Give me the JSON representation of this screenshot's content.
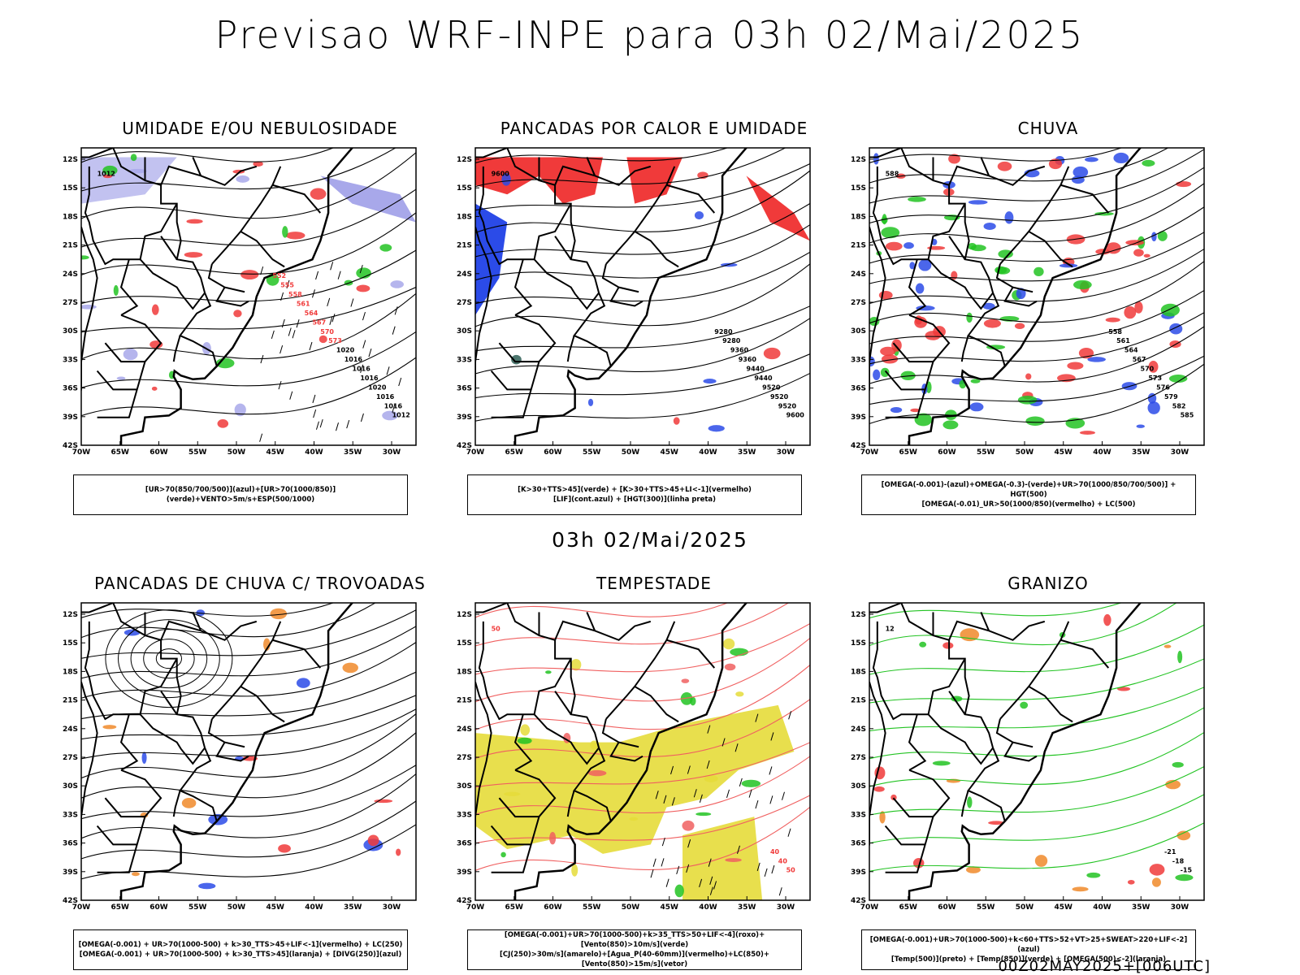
{
  "header": {
    "title": "Previsao WRF-INPE  para 03h 02/Mai/2025",
    "subtitle": "03h 02/Mai/2025",
    "footer": "00Z02MAY2025+[006UTC]"
  },
  "axes": {
    "y_labels": [
      "12S",
      "15S",
      "18S",
      "21S",
      "24S",
      "27S",
      "30S",
      "33S",
      "36S",
      "39S",
      "42S"
    ],
    "x_labels": [
      "70W",
      "65W",
      "60W",
      "55W",
      "50W",
      "45W",
      "40W",
      "35W",
      "30W"
    ]
  },
  "panels": [
    {
      "title": "UMIDADE E/OU NEBULOSIDADE",
      "legend": [
        "[UR>70(850/700/500)](azul)+[UR>70(1000/850)](verde)+VENTO>5m/s+ESP(500/1000)"
      ],
      "contour_labels": [
        "1012",
        "1012",
        "1016",
        "1016",
        "1020",
        "1016",
        "1016",
        "1016",
        "1020",
        "573",
        "570",
        "567",
        "564",
        "561",
        "558",
        "555",
        "552"
      ]
    },
    {
      "title": "PANCADAS POR CALOR E UMIDADE",
      "legend": [
        "[K>30+TTS>45](verde) + [K>30+TTS>45+LI<-1](vermelho)",
        "[LIF](cont.azul) + [HGT(300)](linha preta)"
      ],
      "contour_labels": [
        "9600",
        "9600",
        "9520",
        "9520",
        "9520",
        "9440",
        "9440",
        "9360",
        "9360",
        "9280",
        "9280"
      ]
    },
    {
      "title": "CHUVA",
      "legend": [
        "[OMEGA(-0.001)-(azul)+OMEGA(-0.3)-(verde)+UR>70(1000/850/700/500)] + HGT(500)",
        "[OMEGA(-0.01)_UR>50(1000/850)(vermelho) + LC(500)"
      ],
      "contour_labels": [
        "588",
        "585",
        "582",
        "579",
        "576",
        "573",
        "570",
        "567",
        "564",
        "561",
        "558"
      ]
    },
    {
      "title": "PANCADAS DE CHUVA C/ TROVOADAS",
      "legend": [
        "[OMEGA(-0.001) + UR>70(1000-500) + k>30_TTS>45+LIF<-1](vermelho) + LC(250)",
        "[OMEGA(-0.001) + UR>70(1000-500) + k>30_TTS>45](laranja) + [DIVG(250)](azul)"
      ],
      "contour_labels": []
    },
    {
      "title": "TEMPESTADE",
      "legend": [
        "[OMEGA(-0.001)+UR>70(1000-500)+k>35_TTS>50+LIF<-4](roxo)+[Vento(850)>10m/s](verde)",
        "[CJ(250)>30m/s](amarelo)+[Agua_P(40-60mm)](vermelho)+LC(850)+[Vento(850)>15m/s](vetor)"
      ],
      "contour_labels": [
        "50",
        "50",
        "40",
        "40"
      ]
    },
    {
      "title": "GRANIZO",
      "legend": [
        "[OMEGA(-0.001)+UR>70(1000-500)+k<60+TTS>52+VT>25+SWEAT>220+LIF<-2](azul)",
        "[Temp(500)](preto) + [Temp(850)](verde) + [OMEGA(500)<-2](laranja)"
      ],
      "contour_labels": [
        "12",
        "-15",
        "-18",
        "-21"
      ]
    }
  ],
  "colors": {
    "red": "#f03a3a",
    "green": "#22c322",
    "blue": "#2b4be8",
    "lavender": "#a8a8ea",
    "yellow": "#e5dc3a",
    "darkteal": "#2d5e55",
    "orange": "#f08a2a",
    "salmon": "#f06060"
  }
}
